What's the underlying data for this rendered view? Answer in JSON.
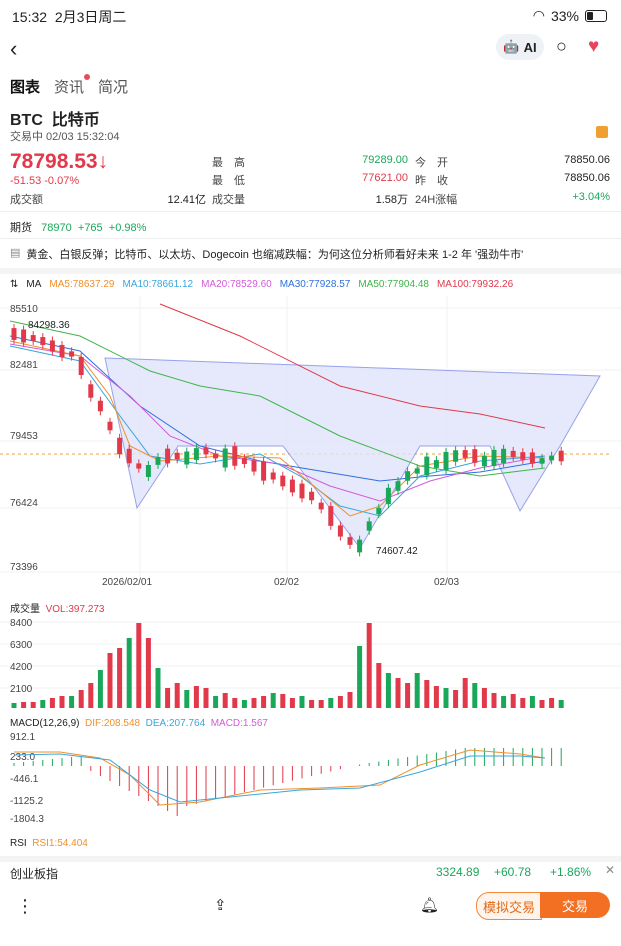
{
  "status": {
    "time": "15:32",
    "date": "2月3日周二",
    "battery": "33%"
  },
  "nav": {
    "ai_label": "AI"
  },
  "tabs": [
    "图表",
    "资讯",
    "简况"
  ],
  "asset": {
    "code": "BTC",
    "name": "比特币",
    "trade_status": "交易中 02/03 15:32:04"
  },
  "quote": {
    "price": "78798.53",
    "change": "-51.53 -0.07%",
    "stats": [
      {
        "label": "最　高",
        "value": "79289.00",
        "color": "green"
      },
      {
        "label": "今　开",
        "value": "78850.06",
        "color": "dark"
      },
      {
        "label": "最　低",
        "value": "77621.00",
        "color": "red"
      },
      {
        "label": "昨　收",
        "value": "78850.06",
        "color": "dark"
      }
    ],
    "turnover_label": "成交额",
    "turnover": "12.41亿",
    "volume_label": "成交量",
    "volume": "1.58万",
    "change24_label": "24H涨幅",
    "change24": "+3.04%"
  },
  "futures": {
    "label": "期货",
    "price": "78970",
    "change": "+765",
    "pct": "+0.98%"
  },
  "news": "黄金、白银反弹；比特币、以太坊、Dogecoin 也缩减跌幅：为何这位分析师看好未来 1-2 年 '强劲牛市'",
  "ma_legend": {
    "title": "MA",
    "items": [
      {
        "text": "MA5:78637.29",
        "color": "#f0902a"
      },
      {
        "text": "MA10:78661.12",
        "color": "#3aa6dc"
      },
      {
        "text": "MA20:78529.60",
        "color": "#d15bd9"
      },
      {
        "text": "MA30:77928.57",
        "color": "#2f6fde"
      },
      {
        "text": "MA50:77904.48",
        "color": "#3fb54a"
      },
      {
        "text": "MA100:79932.26",
        "color": "#e2394a"
      }
    ]
  },
  "chart_data": {
    "type": "candlestick",
    "y_ticks": [
      "85510",
      "82481",
      "79453",
      "76424",
      "73396"
    ],
    "x_ticks": [
      "2026/02/01",
      "02/02",
      "02/03"
    ],
    "high_annotation": "84298.36",
    "low_annotation": "74607.42",
    "volume_label": "成交量",
    "vol_value": "VOL:397.273",
    "vol_ticks": [
      "8400",
      "6300",
      "4200",
      "2100"
    ],
    "macd_label": "MACD(12,26,9)",
    "macd_values": {
      "dif": "DIF:208.548",
      "dea": "DEA:207.764",
      "macd": "MACD:1.567"
    },
    "macd_ticks": [
      "912.1",
      "233.0",
      "-446.1",
      "-1125.2",
      "-1804.3"
    ],
    "rsi_label": "RSI",
    "rsi_value": "RSI1:54.404"
  },
  "index": {
    "name": "创业板指",
    "value": "3324.89",
    "change": "+60.78",
    "pct": "+1.86%"
  },
  "bottom": {
    "sim_label": "模拟交易",
    "trade_label": "交易"
  }
}
